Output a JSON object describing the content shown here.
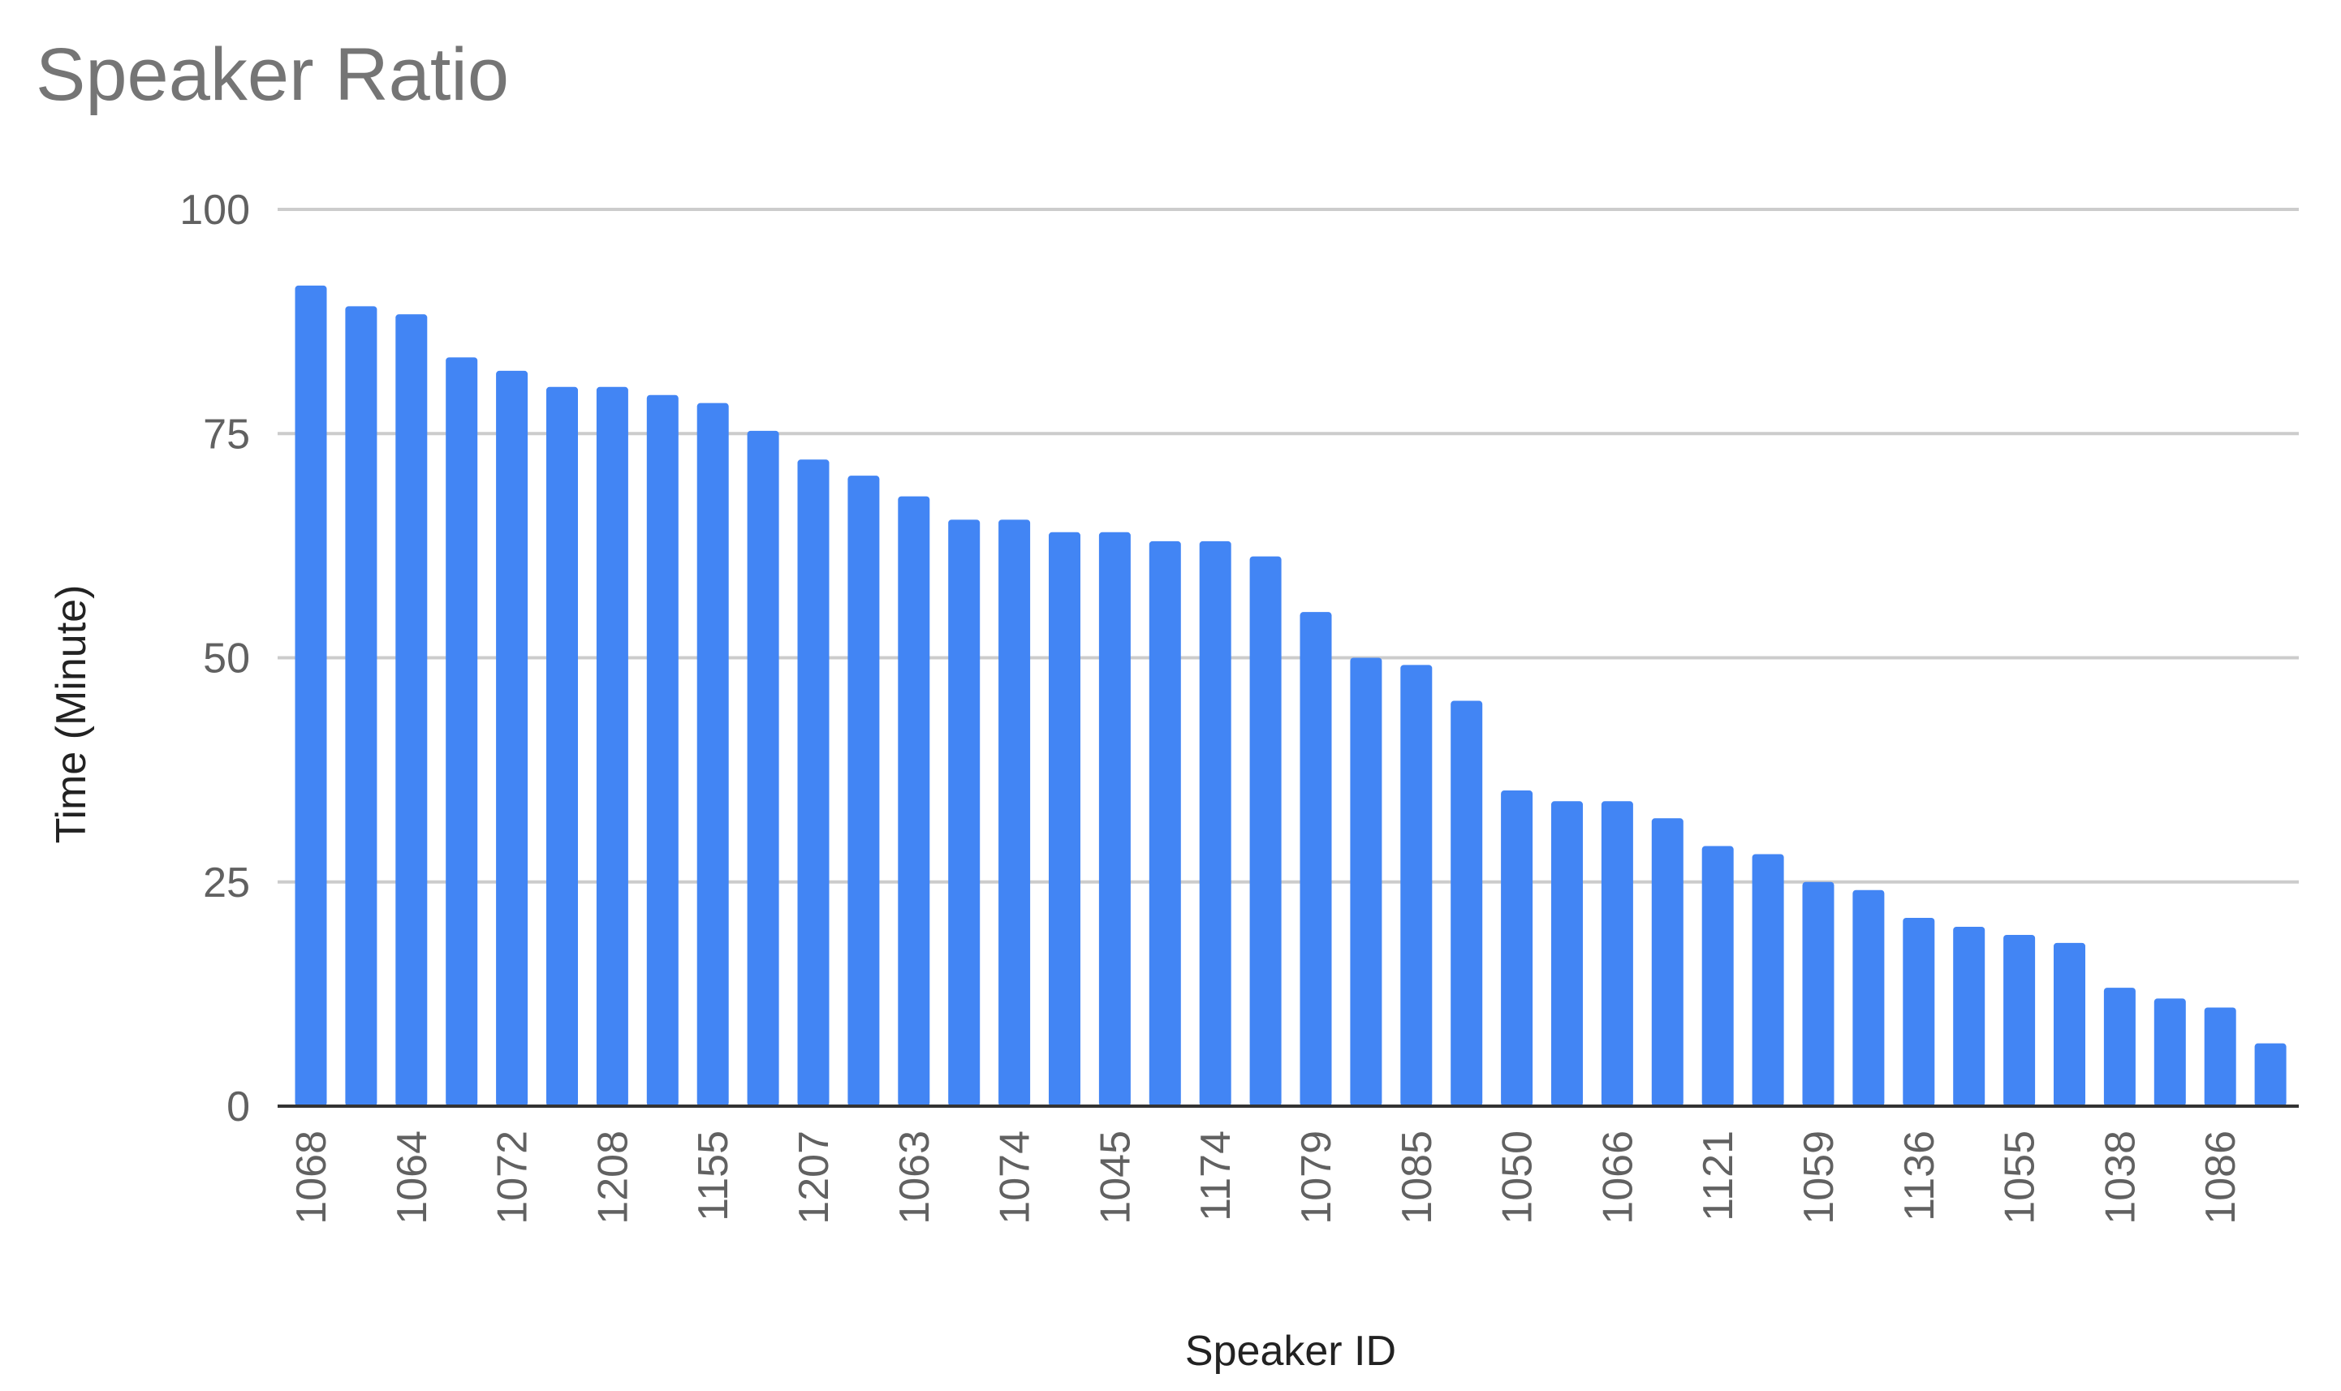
{
  "chart_data": {
    "type": "bar",
    "title": "Speaker Ratio",
    "xlabel": "Speaker ID",
    "ylabel": "Time (Minute)",
    "ylim": [
      0,
      100
    ],
    "yticks": [
      0,
      25,
      50,
      75,
      100
    ],
    "grid": true,
    "legend": "none",
    "bar_color": "#4285f4",
    "grid_color": "#cccccc",
    "axis_color": "#333333",
    "tick_label_color": "#616161",
    "categories": [
      "1068",
      "",
      "1064",
      "",
      "1072",
      "",
      "1208",
      "",
      "1155",
      "",
      "1207",
      "",
      "1063",
      "",
      "1074",
      "",
      "1045",
      "",
      "1174",
      "",
      "1079",
      "",
      "1085",
      "",
      "1050",
      "",
      "1066",
      "",
      "1121",
      "",
      "1059",
      "",
      "1136",
      "",
      "1055",
      "",
      "1038",
      "",
      "1086",
      ""
    ],
    "values": [
      91.5,
      89.2,
      88.3,
      83.5,
      82,
      80.2,
      80.2,
      79.3,
      78.4,
      75.3,
      72.1,
      70.3,
      68,
      65.4,
      65.4,
      64,
      64,
      63,
      63,
      61.3,
      55.1,
      50,
      49.2,
      45.2,
      35.2,
      34,
      34,
      32.1,
      29,
      28.1,
      25,
      24.1,
      21,
      20,
      19.1,
      18.2,
      13.2,
      12,
      11,
      7
    ]
  }
}
